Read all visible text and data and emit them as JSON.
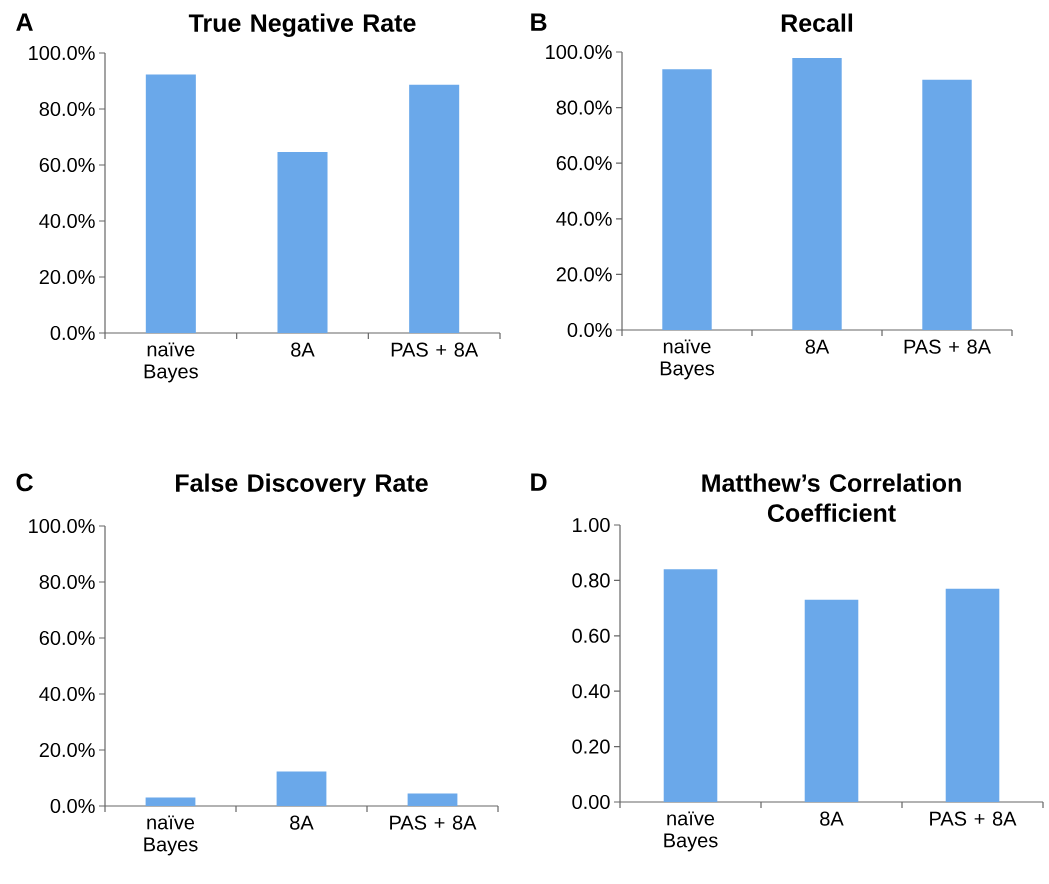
{
  "chart_data": [
    {
      "type": "bar",
      "title": "True Negative Rate",
      "annotations": [
        "A"
      ],
      "categories": [
        "naïve Bayes",
        "8A",
        "PAS + 8A"
      ],
      "values": [
        92.3,
        64.6,
        88.7
      ],
      "color": "#6aa8ea",
      "ylim": [
        0,
        100
      ],
      "yticks": [
        {
          "value": 0,
          "label": "0.0%"
        },
        {
          "value": 20,
          "label": "20.0%"
        },
        {
          "value": 40,
          "label": "40.0%"
        },
        {
          "value": 60,
          "label": "60.0%"
        },
        {
          "value": 80,
          "label": "80.0%"
        },
        {
          "value": 100,
          "label": "100.0%"
        }
      ]
    },
    {
      "type": "bar",
      "title": "Recall",
      "annotations": [
        "B"
      ],
      "categories": [
        "naïve Bayes",
        "8A",
        "PAS + 8A"
      ],
      "values": [
        93.8,
        97.8,
        90.0
      ],
      "color": "#6aa8ea",
      "ylim": [
        0,
        100
      ],
      "yticks": [
        {
          "value": 0,
          "label": "0.0%"
        },
        {
          "value": 20,
          "label": "20.0%"
        },
        {
          "value": 40,
          "label": "40.0%"
        },
        {
          "value": 60,
          "label": "60.0%"
        },
        {
          "value": 80,
          "label": "80.0%"
        },
        {
          "value": 100,
          "label": "100.0%"
        }
      ]
    },
    {
      "type": "bar",
      "title": "False Discovery Rate",
      "annotations": [
        "C"
      ],
      "categories": [
        "naïve Bayes",
        "8A",
        "PAS + 8A"
      ],
      "values": [
        3.0,
        12.3,
        4.5
      ],
      "color": "#6aa8ea",
      "ylim": [
        0,
        100
      ],
      "yticks": [
        {
          "value": 0,
          "label": "0.0%"
        },
        {
          "value": 20,
          "label": "20.0%"
        },
        {
          "value": 40,
          "label": "40.0%"
        },
        {
          "value": 60,
          "label": "60.0%"
        },
        {
          "value": 80,
          "label": "80.0%"
        },
        {
          "value": 100,
          "label": "100.0%"
        }
      ]
    },
    {
      "type": "bar",
      "title": "Matthew’s Correlation Coefficient",
      "annotations": [
        "D"
      ],
      "categories": [
        "naïve Bayes",
        "8A",
        "PAS + 8A"
      ],
      "values": [
        0.84,
        0.73,
        0.77
      ],
      "color": "#6aa8ea",
      "ylim": [
        0,
        1
      ],
      "yticks": [
        {
          "value": 0,
          "label": "0.00"
        },
        {
          "value": 0.2,
          "label": "0.20"
        },
        {
          "value": 0.4,
          "label": "0.40"
        },
        {
          "value": 0.6,
          "label": "0.60"
        },
        {
          "value": 0.8,
          "label": "0.80"
        },
        {
          "value": 1,
          "label": "1.00"
        }
      ]
    }
  ]
}
